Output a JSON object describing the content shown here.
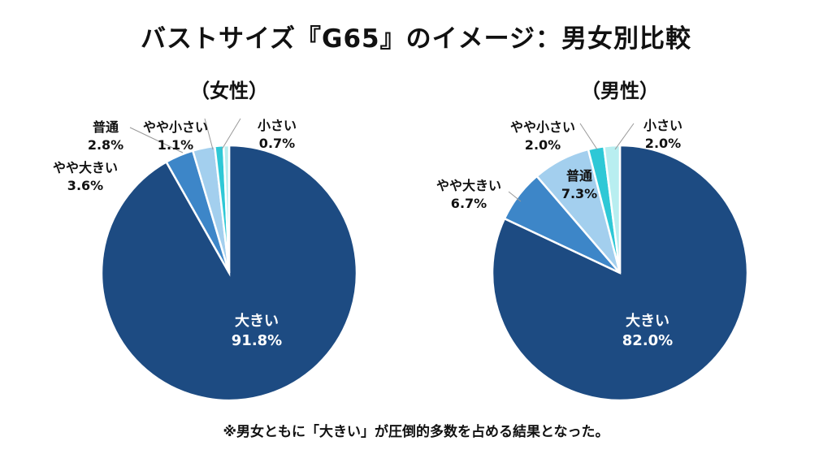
{
  "title": "バストサイズ『G65』のイメージ：男女別比較",
  "note": "※男女ともに「大きい」が圧倒的多数を占める結果となった。",
  "colors": {
    "大きい": "#1d4b82",
    "やや大きい": "#3d86c8",
    "普通": "#a3cfee",
    "やや小さい": "#2ec8d6",
    "小さい": "#b8eef0"
  },
  "chart_data": [
    {
      "type": "pie",
      "title": "（女性）",
      "categories": [
        "大きい",
        "やや大きい",
        "普通",
        "やや小さい",
        "小さい"
      ],
      "values": [
        91.8,
        3.6,
        2.8,
        1.1,
        0.7
      ],
      "labels": [
        "91.8%",
        "3.6%",
        "2.8%",
        "1.1%",
        "0.7%"
      ]
    },
    {
      "type": "pie",
      "title": "（男性）",
      "categories": [
        "大きい",
        "やや大きい",
        "普通",
        "やや小さい",
        "小さい"
      ],
      "values": [
        82.0,
        6.7,
        7.3,
        2.0,
        2.0
      ],
      "labels": [
        "82.0%",
        "6.7%",
        "7.3%",
        "2.0%",
        "2.0%"
      ]
    }
  ]
}
